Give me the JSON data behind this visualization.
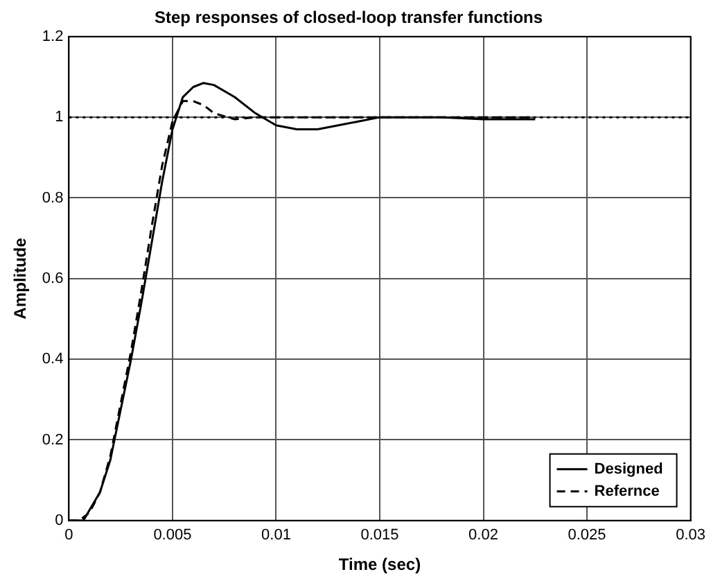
{
  "chart_data": {
    "type": "line",
    "title": "Step responses of closed-loop transfer functions",
    "xlabel": "Time (sec)",
    "ylabel": "Amplitude",
    "series": [
      {
        "name": "Designed",
        "color": "#000000",
        "line_style": "solid",
        "x": [
          0,
          0.0007,
          0.0015,
          0.002,
          0.003,
          0.0035,
          0.004,
          0.0045,
          0.005,
          0.0055,
          0.006,
          0.0065,
          0.007,
          0.008,
          0.009,
          0.01,
          0.011,
          0.012,
          0.013,
          0.014,
          0.015,
          0.016,
          0.018,
          0.02,
          0.0225
        ],
        "values": [
          0,
          0,
          0.07,
          0.15,
          0.4,
          0.54,
          0.69,
          0.84,
          0.97,
          1.05,
          1.075,
          1.085,
          1.08,
          1.05,
          1.01,
          0.98,
          0.97,
          0.97,
          0.98,
          0.99,
          1.0,
          1.0,
          1.0,
          0.995,
          0.995
        ]
      },
      {
        "name": "Refernce",
        "color": "#000000",
        "line_style": "dashed",
        "x": [
          0,
          0.0005,
          0.001,
          0.0015,
          0.002,
          0.003,
          0.0035,
          0.004,
          0.0045,
          0.005,
          0.0055,
          0.006,
          0.0065,
          0.007,
          0.008,
          0.009,
          0.01,
          0.015,
          0.0225
        ],
        "values": [
          0,
          0,
          0.02,
          0.07,
          0.16,
          0.42,
          0.57,
          0.73,
          0.88,
          0.99,
          1.04,
          1.04,
          1.03,
          1.01,
          0.995,
          1.0,
          1.0,
          1.0,
          1.0
        ]
      }
    ],
    "xlim": [
      0,
      0.03
    ],
    "xticks": [
      0,
      0.005,
      0.01,
      0.015,
      0.02,
      0.025,
      0.03
    ],
    "ylim": [
      0,
      1.2
    ],
    "yticks": [
      0,
      0.2,
      0.4,
      0.6,
      0.8,
      1,
      1.2
    ],
    "ref_lines": [
      {
        "axis": "y",
        "value": 1,
        "color": "#000000",
        "line_style": "dotted"
      }
    ],
    "grid": true,
    "legend": "bottom right",
    "marker": "none"
  }
}
